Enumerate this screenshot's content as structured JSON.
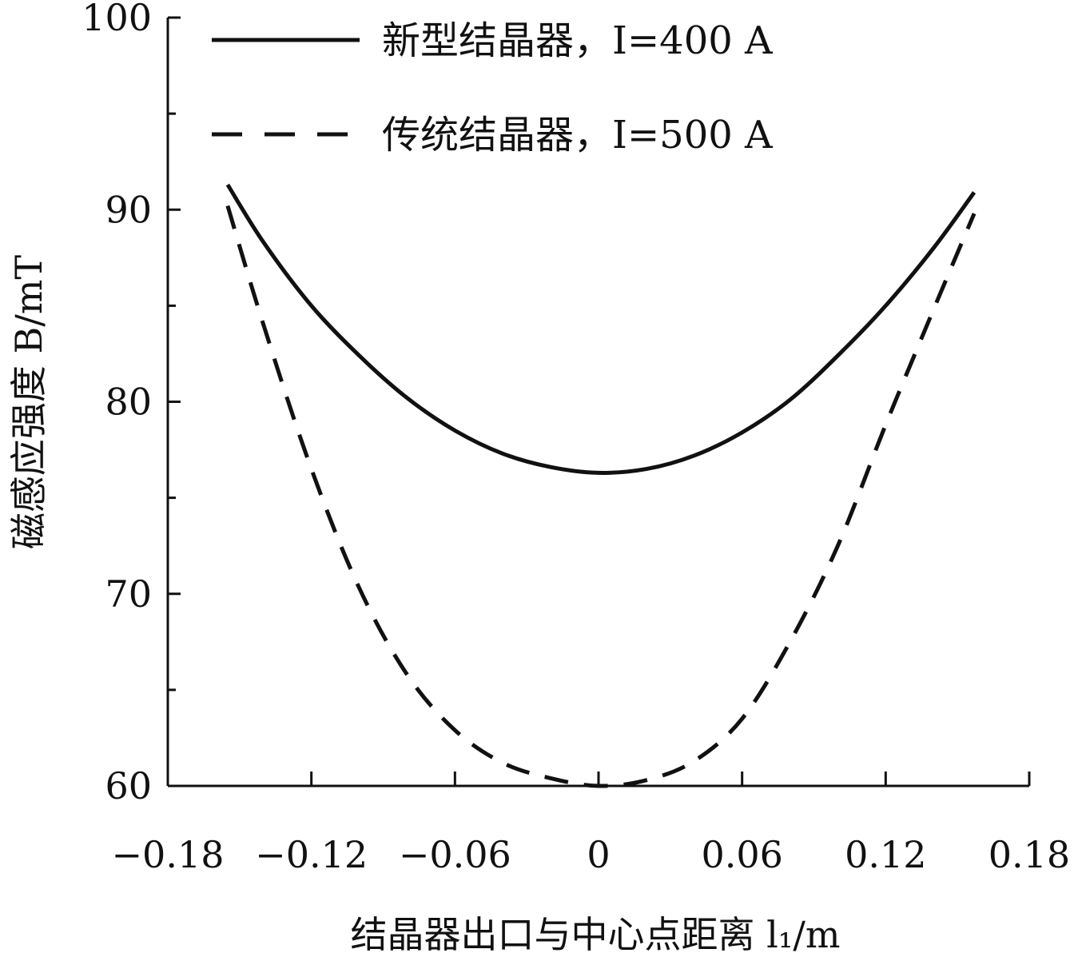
{
  "chart_data": {
    "type": "line",
    "xlabel": "结晶器出口与中心点距离 l₁/m",
    "ylabel": "磁感应强度 B/mT",
    "xlim": [
      -0.18,
      0.18
    ],
    "ylim": [
      60,
      100
    ],
    "x_ticks": [
      -0.18,
      -0.12,
      -0.06,
      0,
      0.06,
      0.12,
      0.18
    ],
    "x_tick_labels": [
      "−0.18",
      "−0.12",
      "−0.06",
      "0",
      "0.06",
      "0.12",
      "0.18"
    ],
    "y_ticks": [
      60,
      70,
      80,
      90,
      100
    ],
    "y_tick_labels": [
      "60",
      "70",
      "80",
      "90",
      "100"
    ],
    "y_minor_ticks": [
      65,
      75,
      85,
      95
    ],
    "grid": false,
    "legend_position": "top-left",
    "series": [
      {
        "name": "新型结晶器，I=400 A",
        "style": "solid",
        "color": "#111111",
        "x": [
          -0.155,
          -0.14,
          -0.12,
          -0.1,
          -0.08,
          -0.06,
          -0.04,
          -0.02,
          0.0,
          0.02,
          0.04,
          0.06,
          0.08,
          0.1,
          0.12,
          0.14,
          0.157
        ],
        "y": [
          91.3,
          88.3,
          85.0,
          82.4,
          80.2,
          78.5,
          77.3,
          76.6,
          76.3,
          76.5,
          77.2,
          78.4,
          80.1,
          82.4,
          85.0,
          88.0,
          90.9
        ]
      },
      {
        "name": "传统结晶器，I=500 A",
        "style": "dashed",
        "color": "#111111",
        "x": [
          -0.155,
          -0.14,
          -0.12,
          -0.1,
          -0.08,
          -0.06,
          -0.04,
          -0.02,
          0.0,
          0.02,
          0.04,
          0.06,
          0.08,
          0.1,
          0.12,
          0.14,
          0.157
        ],
        "y": [
          90.2,
          84.0,
          76.5,
          70.3,
          65.8,
          62.9,
          61.2,
          60.4,
          60.0,
          60.3,
          61.3,
          63.5,
          67.5,
          72.5,
          78.8,
          84.8,
          89.8
        ]
      }
    ]
  }
}
